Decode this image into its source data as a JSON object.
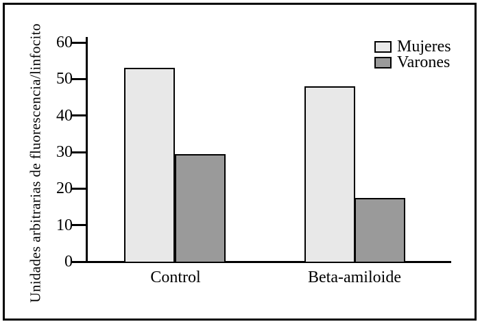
{
  "chart_data": {
    "type": "bar",
    "categories": [
      "Control",
      "Beta-amiloide"
    ],
    "series": [
      {
        "name": "Mujeres",
        "color": "#e8e8e8",
        "values": [
          53,
          48
        ]
      },
      {
        "name": "Varones",
        "color": "#9a9a9a",
        "values": [
          29.5,
          17.5
        ]
      }
    ],
    "title": "",
    "xlabel": "",
    "ylabel": "Unidades arbitrarias de fluorescencia/linfocito",
    "ylim": [
      0,
      60
    ],
    "yticks": [
      0,
      10,
      20,
      30,
      40,
      50,
      60
    ],
    "legend_position": "top-right",
    "grid": false,
    "bar_border_color": "#000000",
    "background_color": "#ffffff"
  }
}
